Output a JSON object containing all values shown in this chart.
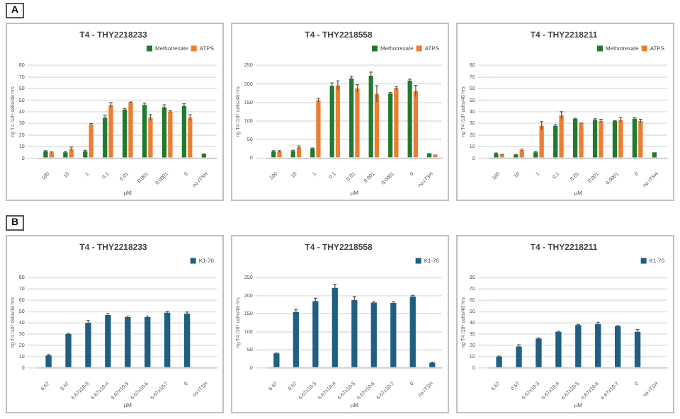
{
  "chart_data": [
    {
      "type": "bar",
      "title": "T4 - THY2218233",
      "xlabel": "µM",
      "ylabel": "ng T4 /10⁵ cells/48 hrs",
      "annotations": [
        "A"
      ],
      "categories": [
        "100",
        "10",
        "1",
        "0.1",
        "0.01",
        "0.001",
        "0.0001",
        "0",
        "no rTSH"
      ],
      "ylim": [
        0,
        80
      ],
      "yticks": [
        0,
        10,
        20,
        30,
        40,
        50,
        60,
        70,
        80
      ],
      "grid": "y",
      "legend": "top right",
      "series": [
        {
          "name": "Methotrexate",
          "color": "#217a2e",
          "values": [
            6,
            5,
            6,
            35,
            42,
            46,
            44,
            45,
            4
          ],
          "errors": [
            0.5,
            0.8,
            0.8,
            2,
            1,
            1.5,
            2,
            2,
            null
          ]
        },
        {
          "name": "ATPS",
          "color": "#ed7d31",
          "values": [
            5,
            8,
            29,
            46,
            48,
            35,
            40,
            35,
            null
          ],
          "errors": [
            0.5,
            1.5,
            0.8,
            2,
            0.5,
            2.5,
            0.8,
            2.5,
            null
          ]
        }
      ]
    },
    {
      "type": "bar",
      "title": "T4 - THY2218558",
      "xlabel": "µM",
      "ylabel": "ng T4 /10⁵ cells/48 hrs",
      "categories": [
        "100",
        "10",
        "1",
        "0.1",
        "0.01",
        "0.001",
        "0.0001",
        "0",
        "no rTSH"
      ],
      "ylim": [
        0,
        250
      ],
      "yticks": [
        0,
        50,
        100,
        150,
        200,
        250
      ],
      "grid": "y",
      "legend": "top right",
      "series": [
        {
          "name": "Methotrexate",
          "color": "#217a2e",
          "values": [
            18,
            19,
            26,
            195,
            215,
            222,
            174,
            209,
            13
          ],
          "errors": [
            2,
            2,
            1,
            8,
            6,
            10,
            3,
            4,
            null
          ]
        },
        {
          "name": "ATPS",
          "color": "#ed7d31",
          "values": [
            18,
            29,
            156,
            196,
            188,
            173,
            189,
            181,
            10
          ],
          "errors": [
            2,
            4,
            5,
            12,
            10,
            22,
            4,
            15,
            null
          ]
        }
      ]
    },
    {
      "type": "bar",
      "title": "T4 - THY2218211",
      "xlabel": "µM",
      "ylabel": "ng T4 /10⁵ cells/48 hrs",
      "categories": [
        "100",
        "10",
        "1",
        "0.1",
        "0.01",
        "0.001",
        "0.0001",
        "0",
        "no rTSH"
      ],
      "ylim": [
        0,
        80
      ],
      "yticks": [
        0,
        10,
        20,
        30,
        40,
        50,
        60,
        70,
        80
      ],
      "grid": "y",
      "legend": "top right",
      "series": [
        {
          "name": "Methotrexate",
          "color": "#217a2e",
          "values": [
            4,
            3,
            5,
            28,
            34,
            33,
            32,
            34,
            5
          ],
          "errors": [
            0.5,
            0.3,
            0.8,
            1,
            0.5,
            1,
            0.3,
            1,
            null
          ]
        },
        {
          "name": "ATPS",
          "color": "#ed7d31",
          "values": [
            3,
            7,
            28,
            37,
            30,
            32,
            33,
            32,
            null
          ],
          "errors": [
            0.3,
            0.8,
            3.5,
            3,
            0.3,
            1.5,
            2,
            1.5,
            null
          ]
        }
      ]
    },
    {
      "type": "bar",
      "title": "T4 - THY2218233",
      "xlabel": "µM",
      "ylabel": "ng T4 /10⁵ cells/48 hrs",
      "annotations": [
        "B"
      ],
      "categories": [
        "6.67",
        "0.67",
        "6.67x10-3",
        "6.67x10-4",
        "6.67x10-5",
        "6.67x10-6",
        "6.67x10-7",
        "0",
        "no rTSH"
      ],
      "ylim": [
        0,
        80
      ],
      "yticks": [
        0,
        10,
        20,
        30,
        40,
        50,
        60,
        70,
        80
      ],
      "grid": "y",
      "legend": "top right",
      "series": [
        {
          "name": "K1-70",
          "color": "#1f5f82",
          "values": [
            11,
            30,
            40,
            47,
            45,
            45,
            49,
            48,
            null
          ],
          "errors": [
            0.8,
            0.5,
            2,
            1,
            1,
            1,
            1,
            1.5,
            null
          ]
        }
      ]
    },
    {
      "type": "bar",
      "title": "T4 - THY2218558",
      "xlabel": "µM",
      "ylabel": "ng T4 /10⁵ cells/48 hrs",
      "categories": [
        "6.67",
        "0.67",
        "6.67x10-3",
        "6.67x10-4",
        "6.67x10-5",
        "6.67x10-6",
        "6.67x10-7",
        "0",
        "no rTSH"
      ],
      "ylim": [
        0,
        250
      ],
      "yticks": [
        0,
        50,
        100,
        150,
        200,
        250
      ],
      "grid": "y",
      "legend": "top right",
      "series": [
        {
          "name": "K1-70",
          "color": "#1f5f82",
          "values": [
            40,
            155,
            185,
            222,
            188,
            181,
            180,
            198,
            14
          ],
          "errors": [
            1,
            7,
            8,
            10,
            10,
            3,
            4,
            3,
            2
          ]
        }
      ]
    },
    {
      "type": "bar",
      "title": "T4 - THY2218211",
      "xlabel": "µM",
      "ylabel": "ng T4 /10⁵ cells/48 hrs",
      "categories": [
        "6.67",
        "0.67",
        "6.67x10-3",
        "6.67x10-4",
        "6.67x10-5",
        "6.67x10-6",
        "6.67x10-7",
        "0",
        "no rTSH"
      ],
      "ylim": [
        0,
        80
      ],
      "yticks": [
        0,
        10,
        20,
        30,
        40,
        50,
        60,
        70,
        80
      ],
      "grid": "y",
      "legend": "top right",
      "series": [
        {
          "name": "K1-70",
          "color": "#1f5f82",
          "values": [
            10,
            19,
            26,
            32,
            38,
            39,
            37,
            32,
            null
          ],
          "errors": [
            0.5,
            1.5,
            0.5,
            0.5,
            0.5,
            1.5,
            0.5,
            2,
            null
          ]
        }
      ]
    }
  ]
}
